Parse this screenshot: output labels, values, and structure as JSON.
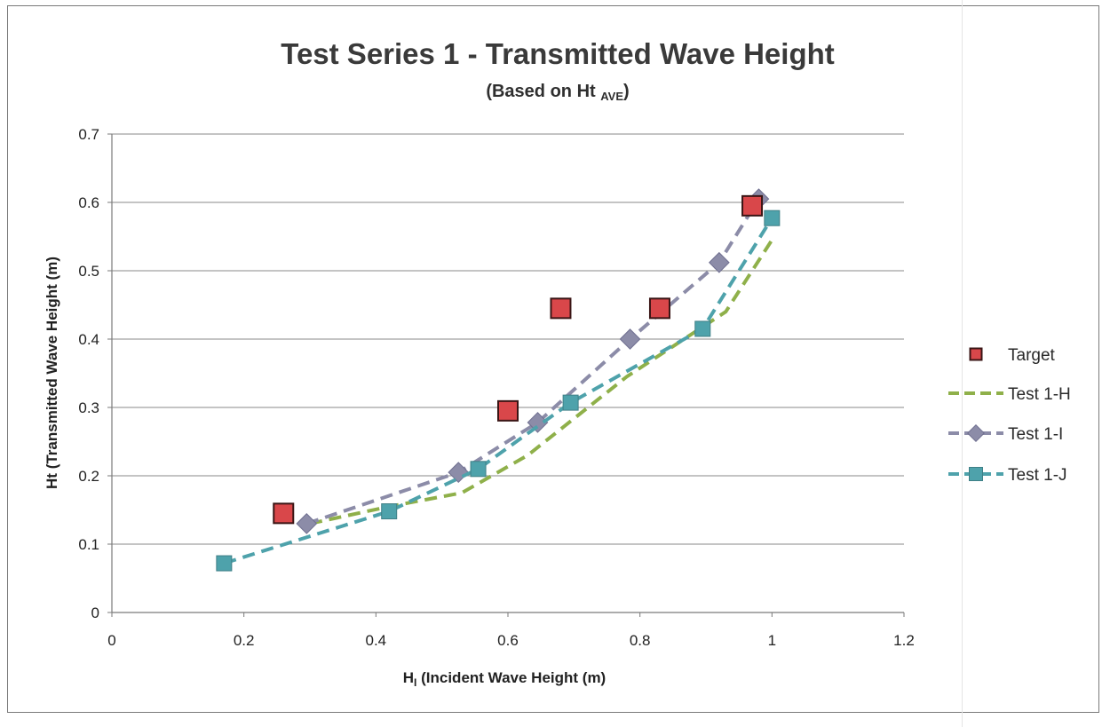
{
  "chart_data": {
    "type": "scatter",
    "title": "Test Series 1 - Transmitted Wave Height",
    "subtitle_prefix": "(Based on Ht ",
    "subtitle_sub": "AVE",
    "subtitle_suffix": ")",
    "xlabel_main": "H",
    "xlabel_sub": "I",
    "xlabel_rest": " (Incident Wave Height (m)",
    "ylabel": "Ht (Transmitted Wave Height (m)",
    "xlim": [
      0,
      1.2
    ],
    "ylim": [
      0,
      0.7
    ],
    "x_ticks": [
      "0",
      "0.2",
      "0.4",
      "0.6",
      "0.8",
      "1",
      "1.2"
    ],
    "y_ticks": [
      "0",
      "0.1",
      "0.2",
      "0.3",
      "0.4",
      "0.5",
      "0.6",
      "0.7"
    ],
    "grid": "horizontal",
    "legend_position": "right",
    "series": [
      {
        "name": "Target",
        "style": "markers",
        "marker": "square",
        "color": "#d9474a",
        "points": [
          [
            0.26,
            0.145
          ],
          [
            0.6,
            0.295
          ],
          [
            0.68,
            0.445
          ],
          [
            0.83,
            0.445
          ],
          [
            0.97,
            0.595
          ]
        ]
      },
      {
        "name": "Test 1-H",
        "style": "dashed",
        "marker": "none",
        "color": "#8fb04a",
        "points": [
          [
            0.3,
            0.13
          ],
          [
            0.42,
            0.155
          ],
          [
            0.53,
            0.175
          ],
          [
            0.63,
            0.23
          ],
          [
            0.78,
            0.345
          ],
          [
            0.93,
            0.44
          ],
          [
            1.0,
            0.545
          ]
        ]
      },
      {
        "name": "Test 1-I",
        "style": "dashed",
        "marker": "diamond",
        "color": "#8c8ca8",
        "points": [
          [
            0.295,
            0.13
          ],
          [
            0.525,
            0.205
          ],
          [
            0.645,
            0.278
          ],
          [
            0.785,
            0.4
          ],
          [
            0.92,
            0.512
          ],
          [
            0.98,
            0.605
          ]
        ]
      },
      {
        "name": "Test 1-J",
        "style": "dashed",
        "marker": "square",
        "color": "#4ea2ab",
        "points": [
          [
            0.17,
            0.072
          ],
          [
            0.42,
            0.148
          ],
          [
            0.555,
            0.21
          ],
          [
            0.695,
            0.307
          ],
          [
            0.895,
            0.415
          ],
          [
            1.0,
            0.577
          ]
        ]
      }
    ]
  }
}
